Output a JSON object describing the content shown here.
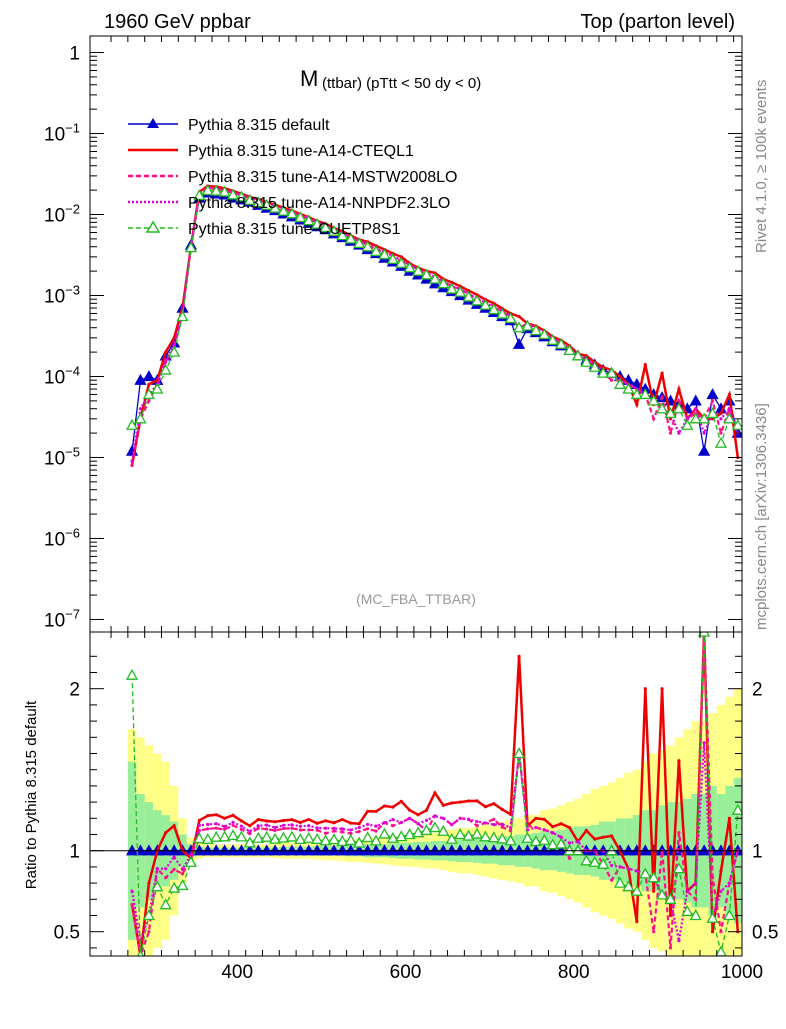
{
  "chart_data": {
    "type": "line",
    "header_left": "1960 GeV ppbar",
    "header_right": "Top (parton level)",
    "title_main": "M",
    "title_sub": "(ttbar) (pTtt < 50 dy < 0)",
    "side_label_top": "Rivet 4.1.0, ≥ 100k events",
    "side_label_bottom": "mcplots.cern.ch [arXiv:1306.3436]",
    "analysis_label": "(MC_FBA_TTBAR)",
    "ratio_ylabel": "Ratio to Pythia 8.315 default",
    "xlim": [
      225,
      1000
    ],
    "main_ylim": [
      7e-08,
      1.6
    ],
    "ratio_ylim": [
      0.35,
      2.35
    ],
    "x_ticks": [
      400,
      600,
      800,
      1000
    ],
    "x_tick_labels": [
      "400",
      "600",
      "800",
      "1000"
    ],
    "main_y_ticks": [
      1,
      0.1,
      0.01,
      0.001,
      0.0001,
      1e-05,
      1e-06,
      1e-07
    ],
    "main_y_tick_labels": [
      {
        "base": "1",
        "exp": ""
      },
      {
        "base": "10",
        "exp": "−1"
      },
      {
        "base": "10",
        "exp": "−2"
      },
      {
        "base": "10",
        "exp": "−3"
      },
      {
        "base": "10",
        "exp": "−4"
      },
      {
        "base": "10",
        "exp": "−5"
      },
      {
        "base": "10",
        "exp": "−6"
      },
      {
        "base": "10",
        "exp": "−7"
      }
    ],
    "ratio_y_ticks": [
      0.5,
      1,
      2
    ],
    "ratio_y_tick_labels": [
      "0.5",
      "1",
      "2"
    ],
    "x": [
      275,
      285,
      295,
      305,
      315,
      325,
      335,
      345,
      355,
      365,
      375,
      385,
      395,
      405,
      415,
      425,
      435,
      445,
      455,
      465,
      475,
      485,
      495,
      505,
      515,
      525,
      535,
      545,
      555,
      565,
      575,
      585,
      595,
      605,
      615,
      625,
      635,
      645,
      655,
      665,
      675,
      685,
      695,
      705,
      715,
      725,
      735,
      745,
      755,
      765,
      775,
      785,
      795,
      805,
      815,
      825,
      835,
      845,
      855,
      865,
      875,
      885,
      895,
      905,
      915,
      925,
      935,
      945,
      955,
      965,
      975,
      985,
      995
    ],
    "series": [
      {
        "name": "Pythia 8.315 default",
        "color": "#0000cc",
        "dash": "",
        "marker": "triangle-filled",
        "values": [
          1.2e-05,
          9e-05,
          0.0001,
          9e-05,
          0.00018,
          0.00026,
          0.0007,
          0.0042,
          0.016,
          0.0185,
          0.018,
          0.0175,
          0.016,
          0.0152,
          0.0143,
          0.013,
          0.012,
          0.0112,
          0.0102,
          0.0094,
          0.0086,
          0.0078,
          0.0071,
          0.0065,
          0.0058,
          0.0052,
          0.0047,
          0.0042,
          0.0037,
          0.0033,
          0.0029,
          0.0026,
          0.0023,
          0.002,
          0.0018,
          0.0016,
          0.0014,
          0.00125,
          0.00112,
          0.001,
          0.00088,
          0.00078,
          0.0007,
          0.00062,
          0.00055,
          0.00049,
          0.00025,
          0.00039,
          0.00035,
          0.00031,
          0.00027,
          0.00024,
          0.00021,
          0.00018,
          0.00016,
          0.00014,
          0.00012,
          0.00011,
          0.0001,
          9e-05,
          8e-05,
          7e-05,
          6e-05,
          5.5e-05,
          5e-05,
          4.5e-05,
          4e-05,
          5e-05,
          1.2e-05,
          6e-05,
          4e-05,
          5e-05,
          2e-05
        ]
      },
      {
        "name": "Pythia 8.315 tune-A14-CTEQL1",
        "color": "#ee0000",
        "dash": "",
        "marker": "none",
        "values": [
          8e-06,
          3e-05,
          8e-05,
          9e-05,
          0.0002,
          0.0003,
          0.0007,
          0.004,
          0.019,
          0.0225,
          0.022,
          0.021,
          0.0195,
          0.018,
          0.0165,
          0.0155,
          0.0142,
          0.0132,
          0.0121,
          0.0112,
          0.0101,
          0.0093,
          0.0083,
          0.0077,
          0.0068,
          0.0062,
          0.0055,
          0.0049,
          0.0046,
          0.0041,
          0.0037,
          0.0033,
          0.003,
          0.0025,
          0.0022,
          0.002,
          0.0019,
          0.0016,
          0.00145,
          0.0013,
          0.00115,
          0.00102,
          0.00089,
          0.0008,
          0.00069,
          0.0006,
          0.00055,
          0.00045,
          0.00042,
          0.00037,
          0.00031,
          0.00028,
          0.00024,
          0.00019,
          0.00018,
          0.00015,
          0.00013,
          0.00012,
          0.0001,
          8e-05,
          4.5e-05,
          0.00014,
          4.5e-05,
          0.00011,
          3e-05,
          7e-05,
          3e-05,
          4e-05,
          3e-05,
          3e-05,
          3.5e-05,
          6e-05,
          1e-05
        ]
      },
      {
        "name": "Pythia 8.315 tune-A14-MSTW2008LO",
        "color": "#ff1188",
        "dash": "5,3",
        "marker": "none",
        "values": [
          8e-06,
          3e-05,
          5e-05,
          8e-05,
          0.00015,
          0.00023,
          0.0006,
          0.004,
          0.018,
          0.021,
          0.0205,
          0.0198,
          0.0185,
          0.0172,
          0.0158,
          0.0148,
          0.0136,
          0.0126,
          0.0116,
          0.0107,
          0.0097,
          0.0088,
          0.008,
          0.0072,
          0.0065,
          0.0058,
          0.0052,
          0.0047,
          0.0042,
          0.0037,
          0.0034,
          0.003,
          0.0027,
          0.0024,
          0.0021,
          0.0018,
          0.0017,
          0.0015,
          0.0013,
          0.0012,
          0.00105,
          0.0009,
          0.00082,
          0.00074,
          0.00063,
          0.00055,
          0.0004,
          0.00045,
          0.0004,
          0.00035,
          0.0003,
          0.00026,
          0.0002,
          0.00018,
          0.00016,
          0.00014,
          0.00011,
          9e-05,
          9e-05,
          8e-05,
          7e-05,
          6e-05,
          3e-05,
          5.5e-05,
          2e-05,
          5e-05,
          3e-05,
          3.5e-05,
          3e-05,
          5e-05,
          2e-05,
          4e-05,
          2e-05
        ]
      },
      {
        "name": "Pythia 8.315 tune-A14-NNPDF2.3LO",
        "color": "#dd00dd",
        "dash": "2,2",
        "marker": "none",
        "values": [
          9e-06,
          4e-05,
          6e-05,
          8e-05,
          0.00016,
          0.00025,
          0.00062,
          0.0041,
          0.0185,
          0.0215,
          0.021,
          0.0201,
          0.0188,
          0.0175,
          0.016,
          0.015,
          0.0139,
          0.0128,
          0.0118,
          0.0109,
          0.0099,
          0.009,
          0.0081,
          0.0074,
          0.0066,
          0.0059,
          0.0053,
          0.0048,
          0.0043,
          0.0038,
          0.0034,
          0.0031,
          0.0027,
          0.0024,
          0.0021,
          0.0019,
          0.0017,
          0.0015,
          0.0013,
          0.0012,
          0.00105,
          0.00092,
          0.00082,
          0.00072,
          0.00064,
          0.00056,
          0.0004,
          0.00044,
          0.0004,
          0.00035,
          0.0003,
          0.00026,
          0.00022,
          0.00019,
          0.00016,
          0.00014,
          0.00012,
          0.0001,
          9e-05,
          8e-05,
          7e-05,
          6e-05,
          5e-05,
          4e-05,
          3.5e-05,
          2e-05,
          3e-05,
          4e-05,
          2e-05,
          3.5e-05,
          3e-05,
          4e-05,
          2e-05
        ]
      },
      {
        "name": "Pythia 8.315 tune-CUETP8S1",
        "color": "#22bb22",
        "dash": "5,3",
        "marker": "triangle-open",
        "values": [
          2.5e-05,
          3e-05,
          6e-05,
          7e-05,
          0.00012,
          0.0002,
          0.00055,
          0.0039,
          0.0172,
          0.0198,
          0.0195,
          0.019,
          0.0175,
          0.0165,
          0.015,
          0.014,
          0.013,
          0.012,
          0.011,
          0.0102,
          0.0092,
          0.0084,
          0.0076,
          0.0069,
          0.0062,
          0.0055,
          0.005,
          0.0044,
          0.004,
          0.0035,
          0.0032,
          0.0028,
          0.0025,
          0.0022,
          0.002,
          0.0018,
          0.0016,
          0.0014,
          0.0012,
          0.0011,
          0.00096,
          0.00086,
          0.00076,
          0.00067,
          0.00059,
          0.00052,
          0.0004,
          0.00042,
          0.00037,
          0.00033,
          0.00028,
          0.00025,
          0.00021,
          0.00018,
          0.00015,
          0.00013,
          0.00011,
          0.00011,
          8e-05,
          7e-05,
          6e-05,
          6e-05,
          5e-05,
          4e-05,
          3.5e-05,
          4e-05,
          2.5e-05,
          3e-05,
          3e-05,
          3.5e-05,
          1.5e-05,
          3e-05,
          2.5e-05
        ]
      }
    ],
    "ratio_band_x": [
      275,
      285,
      295,
      305,
      315,
      325,
      335,
      345,
      355,
      365,
      375,
      385,
      395,
      405,
      415,
      425,
      435,
      445,
      455,
      465,
      475,
      485,
      495,
      505,
      515,
      525,
      535,
      545,
      555,
      565,
      575,
      585,
      595,
      605,
      615,
      625,
      635,
      645,
      655,
      665,
      675,
      685,
      695,
      705,
      715,
      725,
      735,
      745,
      755,
      765,
      775,
      785,
      795,
      805,
      815,
      825,
      835,
      845,
      855,
      865,
      875,
      885,
      895,
      905,
      915,
      925,
      935,
      945,
      955,
      965,
      975,
      985,
      995
    ],
    "ratio_band_inner": [
      0.55,
      0.35,
      0.3,
      0.25,
      0.22,
      0.18,
      0.1,
      0.04,
      0.025,
      0.02,
      0.02,
      0.02,
      0.02,
      0.02,
      0.02,
      0.02,
      0.02,
      0.02,
      0.025,
      0.025,
      0.025,
      0.025,
      0.03,
      0.03,
      0.03,
      0.03,
      0.035,
      0.035,
      0.04,
      0.04,
      0.04,
      0.045,
      0.05,
      0.05,
      0.055,
      0.055,
      0.06,
      0.06,
      0.065,
      0.07,
      0.07,
      0.075,
      0.08,
      0.08,
      0.09,
      0.09,
      0.1,
      0.1,
      0.11,
      0.12,
      0.12,
      0.13,
      0.14,
      0.15,
      0.15,
      0.16,
      0.18,
      0.18,
      0.2,
      0.2,
      0.22,
      0.25,
      0.25,
      0.28,
      0.3,
      0.3,
      0.32,
      0.35,
      0.35,
      0.4,
      0.35,
      0.4,
      0.45
    ],
    "ratio_band_outer": [
      0.75,
      0.7,
      0.65,
      0.6,
      0.55,
      0.4,
      0.2,
      0.08,
      0.05,
      0.04,
      0.04,
      0.04,
      0.04,
      0.04,
      0.04,
      0.04,
      0.04,
      0.045,
      0.05,
      0.05,
      0.05,
      0.05,
      0.055,
      0.06,
      0.06,
      0.065,
      0.07,
      0.07,
      0.075,
      0.08,
      0.085,
      0.09,
      0.095,
      0.1,
      0.1,
      0.11,
      0.11,
      0.12,
      0.13,
      0.14,
      0.14,
      0.15,
      0.16,
      0.17,
      0.18,
      0.19,
      0.2,
      0.22,
      0.22,
      0.25,
      0.26,
      0.28,
      0.3,
      0.32,
      0.35,
      0.38,
      0.4,
      0.42,
      0.45,
      0.48,
      0.5,
      0.55,
      0.6,
      0.62,
      0.65,
      0.7,
      0.75,
      0.8,
      0.8,
      0.85,
      0.9,
      0.95,
      1.0
    ],
    "band_colors": {
      "inner": "#99ee99",
      "outer": "#ffff88"
    }
  }
}
